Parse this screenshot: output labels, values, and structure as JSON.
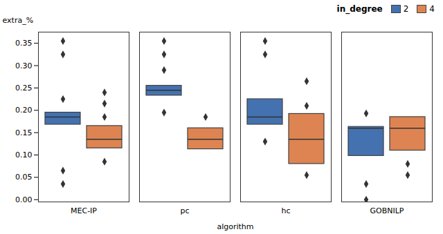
{
  "chart_data": {
    "type": "box",
    "xlabel": "algorithm",
    "ylabel": "extra_%",
    "legend_title": "in_degree",
    "legend": "upper right",
    "grid": false,
    "marker": "diamond",
    "categories": [
      "MEC-IP",
      "pc",
      "hc",
      "GOBNILP"
    ],
    "series": [
      {
        "name": "2",
        "color": "#4472B0",
        "q1": [
          0.168,
          0.233,
          0.168,
          0.098
        ],
        "med": [
          0.185,
          0.245,
          0.185,
          0.16
        ],
        "q3": [
          0.195,
          0.255,
          0.225,
          0.163
        ],
        "fliers": [
          [
            0.035,
            0.065,
            0.225,
            0.325,
            0.355
          ],
          [
            0.195,
            0.29,
            0.325,
            0.355
          ],
          [
            0.13,
            0.325,
            0.355
          ],
          [
            0.0,
            0.035,
            0.193
          ]
        ]
      },
      {
        "name": "4",
        "color": "#DD8452",
        "q1": [
          0.115,
          0.113,
          0.08,
          0.11
        ],
        "med": [
          0.135,
          0.135,
          0.135,
          0.16
        ],
        "q3": [
          0.165,
          0.16,
          0.192,
          0.185
        ],
        "fliers": [
          [
            0.085,
            0.185,
            0.215,
            0.24
          ],
          [
            0.185
          ],
          [
            0.055,
            0.21,
            0.265
          ],
          [
            0.055,
            0.08
          ]
        ]
      }
    ],
    "ylim": [
      -0.005,
      0.375
    ],
    "yticks": [
      {
        "value": 0.0,
        "label": "0.00"
      },
      0.05,
      {
        "value": 0.1,
        "label": "0.10"
      },
      0.15,
      {
        "value": 0.2,
        "label": "0.20"
      },
      0.25,
      {
        "value": 0.3,
        "label": "0.30"
      },
      0.35
    ]
  }
}
